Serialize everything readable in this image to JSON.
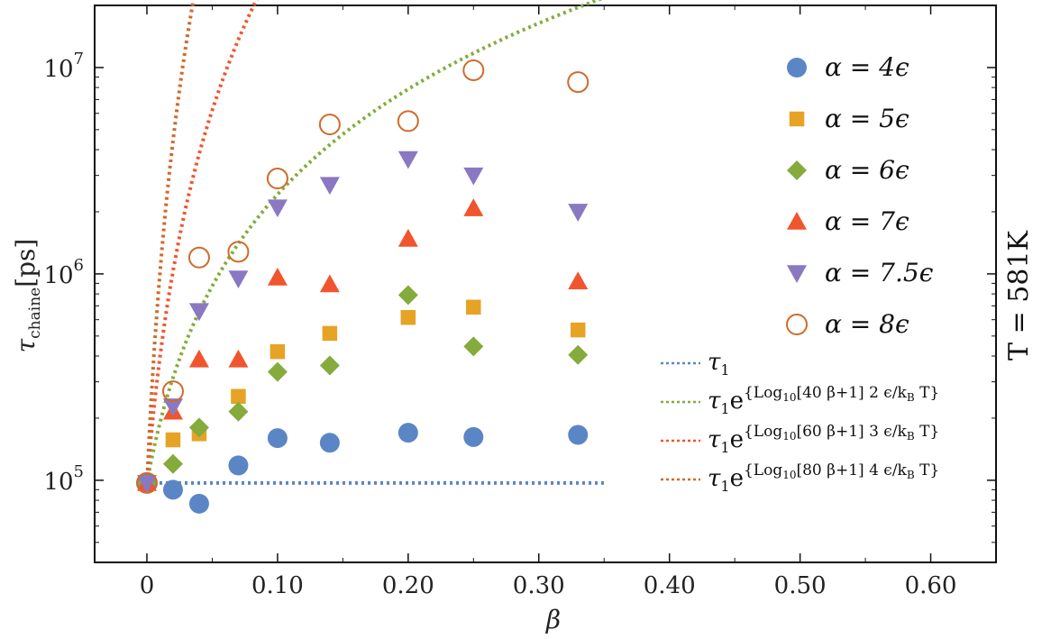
{
  "chart_data": {
    "type": "scatter",
    "title": "",
    "xlabel": "β",
    "ylabel": "τ_chaine[ps]",
    "ylabel_main": "τ",
    "ylabel_sub": "chaine",
    "ylabel_unit": "[ps]",
    "side_label": "T = 581K",
    "x_scale": "linear",
    "y_scale": "log",
    "xlim": [
      -0.04,
      0.65
    ],
    "ylim": [
      40000,
      20000000
    ],
    "x_ticks": [
      0,
      0.1,
      0.2,
      0.3,
      0.4,
      0.5,
      0.6
    ],
    "x_tick_labels": [
      "0",
      "0.10",
      "0.20",
      "0.30",
      "0.40",
      "0.50",
      "0.60"
    ],
    "y_ticks": [
      100000,
      1000000,
      10000000
    ],
    "y_tick_base": "10",
    "y_tick_exps": [
      "5",
      "6",
      "7"
    ],
    "grid": false,
    "legend_position": "right",
    "series": [
      {
        "name": "α = 4ϵ",
        "marker": "circle",
        "color": "#5b86c5",
        "x": [
          0,
          0.02,
          0.04,
          0.07,
          0.1,
          0.14,
          0.2,
          0.25,
          0.33
        ],
        "y": [
          97000,
          90000,
          77000,
          118000,
          160000,
          152000,
          170000,
          162000,
          166000
        ]
      },
      {
        "name": "α = 5ϵ",
        "marker": "square",
        "color": "#e6a326",
        "x": [
          0,
          0.02,
          0.04,
          0.07,
          0.1,
          0.14,
          0.2,
          0.25,
          0.33
        ],
        "y": [
          97000,
          157000,
          168000,
          255000,
          420000,
          515000,
          615000,
          690000,
          535000
        ]
      },
      {
        "name": "α = 6ϵ",
        "marker": "diamond",
        "color": "#84ab3c",
        "x": [
          0,
          0.02,
          0.04,
          0.07,
          0.1,
          0.14,
          0.2,
          0.25,
          0.33
        ],
        "y": [
          97000,
          120000,
          180000,
          215000,
          335000,
          360000,
          790000,
          445000,
          405000
        ]
      },
      {
        "name": "α = 7ϵ",
        "marker": "triangle-up",
        "color": "#f0552e",
        "x": [
          0,
          0.02,
          0.04,
          0.07,
          0.1,
          0.14,
          0.2,
          0.25,
          0.33
        ],
        "y": [
          97000,
          215000,
          385000,
          385000,
          960000,
          890000,
          1480000,
          2080000,
          920000
        ]
      },
      {
        "name": "α = 7.5ϵ",
        "marker": "triangle-down",
        "color": "#8a78c2",
        "x": [
          0,
          0.02,
          0.04,
          0.07,
          0.1,
          0.14,
          0.2,
          0.25,
          0.33
        ],
        "y": [
          97000,
          228000,
          660000,
          950000,
          2100000,
          2700000,
          3600000,
          3000000,
          2000000
        ]
      },
      {
        "name": "α = 8ϵ",
        "marker": "open-circle",
        "color": "#d06a2b",
        "x": [
          0,
          0.02,
          0.04,
          0.07,
          0.1,
          0.14,
          0.2,
          0.25,
          0.33
        ],
        "y": [
          97000,
          270000,
          1200000,
          1280000,
          2900000,
          5300000,
          5500000,
          9700000,
          8500000
        ]
      }
    ],
    "fit_lines": [
      {
        "name": "τ1",
        "latex": "tau1",
        "color": "#5b86c5",
        "tau1": 97000,
        "a": 0,
        "n": 0,
        "xmax": 0.35
      },
      {
        "name": "τ1e^{Log10[40 β+1] 2 ϵ/kB T}",
        "main": "τ",
        "sub": "1",
        "base": "e",
        "exp": "{Log",
        "exp_sub": "10",
        "exp_rest": "[40 β+1] 2 ϵ/k",
        "exp_sub2": "B",
        "exp_end": " T}",
        "color": "#84ab3c",
        "tau1": 97000,
        "a": 40,
        "n": 2,
        "xmax": 0.35
      },
      {
        "name": "τ1e^{Log10[60 β+1] 3 ϵ/kB T}",
        "main": "τ",
        "sub": "1",
        "base": "e",
        "exp": "{Log",
        "exp_sub": "10",
        "exp_rest": "[60 β+1] 3 ϵ/k",
        "exp_sub2": "B",
        "exp_end": " T}",
        "color": "#f0552e",
        "tau1": 97000,
        "a": 60,
        "n": 3,
        "xmax": 0.35
      },
      {
        "name": "τ1e^{Log10[80 β+1] 4 ϵ/kB T}",
        "main": "τ",
        "sub": "1",
        "base": "e",
        "exp": "{Log",
        "exp_sub": "10",
        "exp_rest": "[80 β+1] 4 ϵ/k",
        "exp_sub2": "B",
        "exp_end": " T}",
        "color": "#d06a2b",
        "tau1": 97000,
        "a": 80,
        "n": 4,
        "xmax": 0.35
      }
    ]
  }
}
